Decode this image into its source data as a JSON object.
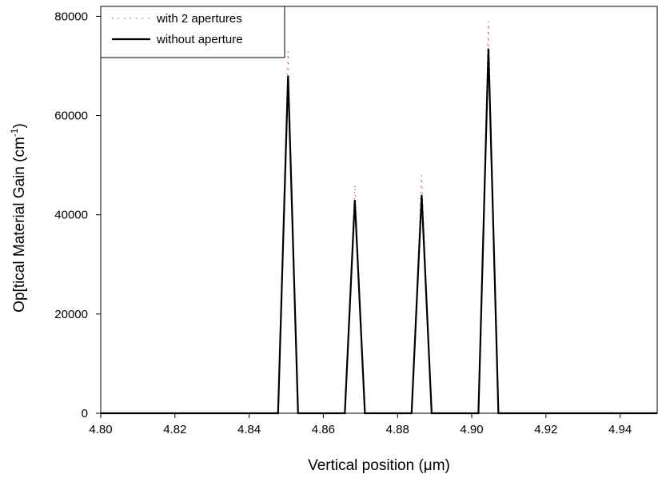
{
  "chart_data": {
    "type": "line",
    "title": "",
    "xlabel": "Vertical position (μm)",
    "ylabel_main": "Op[tical Material Gain (cm",
    "ylabel_sup": "-1",
    "ylabel_tail": ")",
    "xlim": [
      4.8,
      4.95
    ],
    "ylim": [
      0,
      82000
    ],
    "x_ticks": [
      4.8,
      4.82,
      4.84,
      4.86,
      4.88,
      4.9,
      4.92,
      4.94
    ],
    "x_tick_labels": [
      "4.80",
      "4.82",
      "4.84",
      "4.86",
      "4.88",
      "4.90",
      "4.92",
      "4.94"
    ],
    "y_ticks": [
      0,
      20000,
      40000,
      60000,
      80000
    ],
    "y_tick_labels": [
      "0",
      "20000",
      "40000",
      "60000",
      "80000"
    ],
    "grid": false,
    "legend_position": "top-left",
    "series": [
      {
        "name": "with 2 apertures",
        "color": "#e05050",
        "style": "dotted",
        "x": [
          4.8,
          4.8478,
          4.8505,
          4.8532,
          4.8658,
          4.8685,
          4.8712,
          4.8838,
          4.8865,
          4.8892,
          4.9018,
          4.9045,
          4.9072,
          4.95
        ],
        "y": [
          0,
          0,
          73000,
          0,
          0,
          46000,
          0,
          0,
          48000,
          0,
          0,
          79000,
          0,
          0
        ]
      },
      {
        "name": "without aperture",
        "color": "#000000",
        "style": "solid",
        "x": [
          4.8,
          4.8478,
          4.8505,
          4.8532,
          4.8658,
          4.8685,
          4.8712,
          4.8838,
          4.8865,
          4.8892,
          4.9018,
          4.9045,
          4.9072,
          4.95
        ],
        "y": [
          0,
          0,
          68000,
          0,
          0,
          43000,
          0,
          0,
          44000,
          0,
          0,
          73500,
          0,
          0
        ]
      }
    ]
  }
}
